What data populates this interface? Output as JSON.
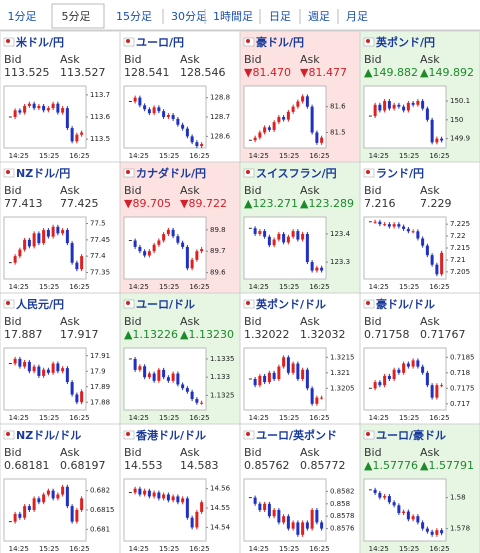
{
  "tabs": {
    "items": [
      "1分足",
      "5分足",
      "15分足",
      "30分足",
      "1時間足",
      "日足",
      "週足",
      "月足"
    ],
    "selected": 1
  },
  "tiles": [
    {
      "name": "米ドル/円",
      "bid_label": "Bid",
      "ask_label": "Ask",
      "bid": "113.525",
      "ask": "113.527",
      "trend": null,
      "ylim": [
        113.46,
        113.74
      ],
      "yticks": [
        113.7,
        113.6,
        113.5
      ],
      "xticks": [
        "14:25",
        "15:25",
        "16:25"
      ],
      "closes": [
        113.6,
        113.63,
        113.62,
        113.65,
        113.66,
        113.64,
        113.65,
        113.63,
        113.64,
        113.66,
        113.62,
        113.64,
        113.55,
        113.49,
        113.52,
        113.53
      ]
    },
    {
      "name": "ユーロ/円",
      "bid_label": "Bid",
      "ask_label": "Ask",
      "bid": "128.541",
      "ask": "128.546",
      "trend": null,
      "ylim": [
        128.54,
        128.86
      ],
      "yticks": [
        128.8,
        128.7,
        128.6
      ],
      "xticks": [
        "14:25",
        "15:25",
        "16:25"
      ],
      "closes": [
        128.78,
        128.8,
        128.76,
        128.74,
        128.72,
        128.75,
        128.73,
        128.7,
        128.71,
        128.69,
        128.66,
        128.64,
        128.6,
        128.57,
        128.55,
        128.56
      ]
    },
    {
      "name": "豪ドル/円",
      "bid_label": "Bid",
      "ask_label": "Ask",
      "bid": "▼81.470",
      "ask": "▼81.477",
      "trend": "down",
      "ylim": [
        81.44,
        81.68
      ],
      "yticks": [
        81.6,
        81.5
      ],
      "xticks": [
        "14:25",
        "15:25",
        "16:25"
      ],
      "closes": [
        81.47,
        81.48,
        81.5,
        81.52,
        81.51,
        81.54,
        81.56,
        81.55,
        81.58,
        81.6,
        81.62,
        81.64,
        81.6,
        81.5,
        81.46,
        81.48
      ]
    },
    {
      "name": "英ポンド/円",
      "bid_label": "Bid",
      "ask_label": "Ask",
      "bid": "▲149.882",
      "ask": "▲149.892",
      "trend": "up",
      "ylim": [
        149.85,
        150.18
      ],
      "yticks": [
        150.1,
        150,
        149.9
      ],
      "xticks": [
        "14:25",
        "15:25",
        "16:25"
      ],
      "closes": [
        150.02,
        150.08,
        150.05,
        150.1,
        150.06,
        150.08,
        150.07,
        150.05,
        150.09,
        150.08,
        150.1,
        150.06,
        150.0,
        149.88,
        149.9,
        149.89
      ]
    },
    {
      "name": "NZドル/円",
      "bid_label": "Bid",
      "ask_label": "Ask",
      "bid": "77.413",
      "ask": "77.425",
      "trend": null,
      "ylim": [
        77.33,
        77.52
      ],
      "yticks": [
        77.5,
        77.45,
        77.4,
        77.35
      ],
      "xticks": [
        "14:25",
        "15:25",
        "16:25"
      ],
      "closes": [
        77.38,
        77.4,
        77.42,
        77.45,
        77.43,
        77.47,
        77.44,
        77.48,
        77.46,
        77.49,
        77.47,
        77.48,
        77.44,
        77.38,
        77.36,
        77.4
      ]
    },
    {
      "name": "カナダドル/円",
      "bid_label": "Bid",
      "ask_label": "Ask",
      "bid": "▼89.705",
      "ask": "▼89.722",
      "trend": "down",
      "ylim": [
        89.57,
        89.86
      ],
      "yticks": [
        89.8,
        89.7,
        89.6
      ],
      "xticks": [
        "14:25",
        "15:25",
        "16:25"
      ],
      "closes": [
        89.75,
        89.72,
        89.7,
        89.68,
        89.7,
        89.73,
        89.75,
        89.78,
        89.8,
        89.77,
        89.74,
        89.72,
        89.62,
        89.66,
        89.7,
        89.71
      ]
    },
    {
      "name": "スイスフラン/円",
      "bid_label": "Bid",
      "ask_label": "Ask",
      "bid": "▲123.271",
      "ask": "▲123.289",
      "trend": "up",
      "ylim": [
        123.24,
        123.46
      ],
      "yticks": [
        123.4,
        123.3
      ],
      "xticks": [
        "14:25",
        "15:25",
        "16:25"
      ],
      "closes": [
        123.42,
        123.4,
        123.41,
        123.39,
        123.36,
        123.38,
        123.4,
        123.37,
        123.39,
        123.41,
        123.38,
        123.4,
        123.3,
        123.27,
        123.28,
        123.27
      ]
    },
    {
      "name": "ランド/円",
      "bid_label": "Bid",
      "ask_label": "Ask",
      "bid": "7.216",
      "ask": "7.229",
      "trend": null,
      "ylim": [
        7.202,
        7.228
      ],
      "yticks": [
        7.225,
        7.22,
        7.215,
        7.21,
        7.205
      ],
      "xticks": [
        "14:25",
        "15:25",
        "16:25"
      ],
      "closes": [
        7.226,
        7.226,
        7.225,
        7.225,
        7.224,
        7.225,
        7.224,
        7.223,
        7.222,
        7.222,
        7.219,
        7.216,
        7.212,
        7.208,
        7.204,
        7.213
      ]
    },
    {
      "name": "人民元/円",
      "bid_label": "Bid",
      "ask_label": "Ask",
      "bid": "17.887",
      "ask": "17.917",
      "trend": null,
      "ylim": [
        17.875,
        17.915
      ],
      "yticks": [
        17.91,
        17.9,
        17.89,
        17.88
      ],
      "xticks": [
        "14:25",
        "15:25",
        "16:25"
      ],
      "closes": [
        17.905,
        17.908,
        17.903,
        17.906,
        17.9,
        17.903,
        17.897,
        17.901,
        17.899,
        17.905,
        17.9,
        17.902,
        17.893,
        17.885,
        17.88,
        17.887
      ]
    },
    {
      "name": "ユーロ/ドル",
      "bid_label": "Bid",
      "ask_label": "Ask",
      "bid": "▲1.13226",
      "ask": "▲1.13230",
      "trend": "up",
      "ylim": [
        1.1321,
        1.1338
      ],
      "yticks": [
        1.1335,
        1.133,
        1.1325
      ],
      "xticks": [
        "14:25",
        "15:25",
        "16:25"
      ],
      "closes": [
        1.1335,
        1.1332,
        1.1333,
        1.133,
        1.1331,
        1.1329,
        1.1332,
        1.133,
        1.1329,
        1.1331,
        1.1328,
        1.1327,
        1.1326,
        1.1324,
        1.1323,
        1.1323
      ]
    },
    {
      "name": "英ポンド/ドル",
      "bid_label": "Bid",
      "ask_label": "Ask",
      "bid": "1.32022",
      "ask": "1.32032",
      "trend": null,
      "ylim": [
        1.3198,
        1.3218
      ],
      "yticks": [
        1.3215,
        1.321,
        1.3205
      ],
      "xticks": [
        "14:25",
        "15:25",
        "16:25"
      ],
      "closes": [
        1.3208,
        1.3206,
        1.3209,
        1.3207,
        1.321,
        1.3208,
        1.3212,
        1.3215,
        1.321,
        1.3213,
        1.3208,
        1.3211,
        1.3205,
        1.32,
        1.3202,
        1.3202
      ]
    },
    {
      "name": "豪ドル/ドル",
      "bid_label": "Bid",
      "ask_label": "Ask",
      "bid": "0.71758",
      "ask": "0.71767",
      "trend": null,
      "ylim": [
        0.7168,
        0.7188
      ],
      "yticks": [
        0.7185,
        0.718,
        0.7175,
        0.717
      ],
      "xticks": [
        "14:25",
        "15:25",
        "16:25"
      ],
      "closes": [
        0.7175,
        0.7177,
        0.7176,
        0.7179,
        0.7178,
        0.7181,
        0.718,
        0.7183,
        0.7182,
        0.7184,
        0.7182,
        0.718,
        0.7176,
        0.7172,
        0.7176,
        0.7176
      ]
    },
    {
      "name": "NZドル/ドル",
      "bid_label": "Bid",
      "ask_label": "Ask",
      "bid": "0.68181",
      "ask": "0.68197",
      "trend": null,
      "ylim": [
        0.6807,
        0.6823
      ],
      "yticks": [
        0.682,
        0.6815,
        0.681
      ],
      "xticks": [
        "14:25",
        "15:25",
        "16:25"
      ],
      "closes": [
        0.6812,
        0.6814,
        0.6813,
        0.6816,
        0.6815,
        0.6818,
        0.6817,
        0.6819,
        0.682,
        0.6818,
        0.6819,
        0.6821,
        0.6816,
        0.6812,
        0.6815,
        0.6818
      ]
    },
    {
      "name": "香港ドル/ドル",
      "bid_label": "Bid",
      "ask_label": "Ask",
      "bid": "14.553",
      "ask": "14.583",
      "trend": null,
      "ylim": [
        14.533,
        14.565
      ],
      "yticks": [
        14.56,
        14.55,
        14.54
      ],
      "xticks": [
        "14:25",
        "15:25",
        "16:25"
      ],
      "closes": [
        14.558,
        14.56,
        14.557,
        14.559,
        14.556,
        14.558,
        14.555,
        14.557,
        14.554,
        14.556,
        14.553,
        14.555,
        14.545,
        14.54,
        14.548,
        14.553
      ]
    },
    {
      "name": "ユーロ/英ポンド",
      "bid_label": "Bid",
      "ask_label": "Ask",
      "bid": "0.85762",
      "ask": "0.85772",
      "trend": null,
      "ylim": [
        0.8574,
        0.8584
      ],
      "yticks": [
        0.8582,
        0.858,
        0.8578,
        0.8576
      ],
      "xticks": [
        "14:25",
        "15:25",
        "16:25"
      ],
      "closes": [
        0.8581,
        0.858,
        0.8579,
        0.858,
        0.8578,
        0.8579,
        0.8577,
        0.8578,
        0.8576,
        0.8577,
        0.8575,
        0.8577,
        0.8576,
        0.8579,
        0.8577,
        0.8576
      ]
    },
    {
      "name": "ユーロ/豪ドル",
      "bid_label": "Bid",
      "ask_label": "Ask",
      "bid": "▲1.57776",
      "ask": "▲1.57791",
      "trend": "up",
      "ylim": [
        1.5772,
        1.5812
      ],
      "yticks": [
        1.58,
        1.578
      ],
      "xticks": [
        "14:25",
        "15:25",
        "16:25"
      ],
      "closes": [
        1.5805,
        1.5803,
        1.58,
        1.5801,
        1.5797,
        1.5795,
        1.579,
        1.5791,
        1.5786,
        1.5788,
        1.5784,
        1.578,
        1.5778,
        1.5776,
        1.5779,
        1.5777
      ]
    }
  ]
}
